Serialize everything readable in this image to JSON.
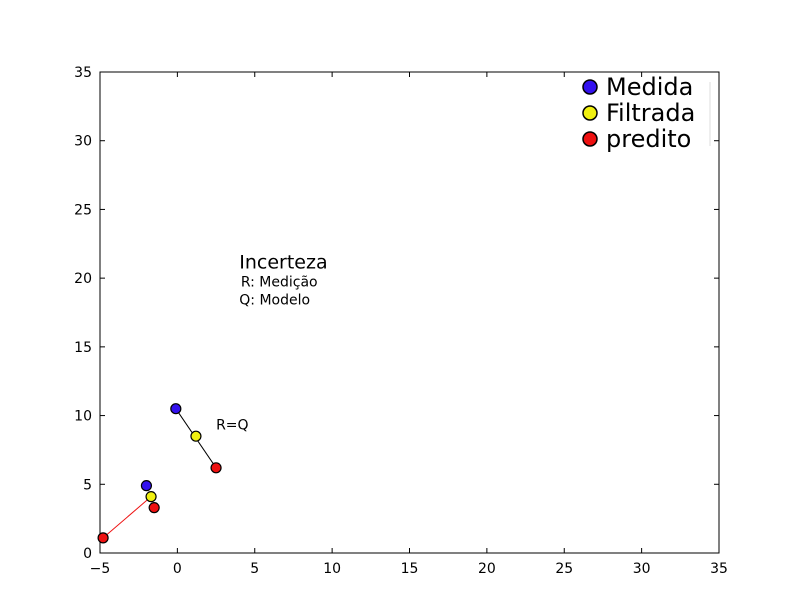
{
  "chart_data": {
    "type": "scatter",
    "xlim": [
      -5,
      35
    ],
    "ylim": [
      0,
      35
    ],
    "x_ticks": [
      -5,
      0,
      5,
      10,
      15,
      20,
      25,
      30,
      35
    ],
    "y_ticks": [
      0,
      5,
      10,
      15,
      20,
      25,
      30,
      35
    ],
    "x_tick_labels": [
      "−5",
      "0",
      "5",
      "10",
      "15",
      "20",
      "25",
      "30",
      "35"
    ],
    "y_tick_labels": [
      "0",
      "5",
      "10",
      "15",
      "20",
      "25",
      "30",
      "35"
    ],
    "grid": false,
    "legend_position": "top-right",
    "series": [
      {
        "name": "Medida",
        "color": "#3311ee",
        "points": [
          [
            -0.1,
            10.5
          ],
          [
            -2.0,
            4.9
          ]
        ]
      },
      {
        "name": "Filtrada",
        "color": "#f0f010",
        "points": [
          [
            1.2,
            8.5
          ],
          [
            -1.7,
            4.1
          ]
        ]
      },
      {
        "name": "predito",
        "color": "#ee1111",
        "points": [
          [
            2.5,
            6.2
          ],
          [
            -1.5,
            3.3
          ],
          [
            -4.8,
            1.1
          ]
        ]
      }
    ],
    "connectors": [
      {
        "from": [
          -0.1,
          10.5
        ],
        "to": [
          2.5,
          6.2
        ],
        "color": "#000000"
      },
      {
        "from": [
          -1.7,
          4.1
        ],
        "to": [
          -4.8,
          1.1
        ],
        "color": "#ee1111"
      }
    ],
    "annotations": [
      {
        "text": "Incerteza",
        "x": 4.0,
        "y": 20.7,
        "size": "large"
      },
      {
        "text": "R: Medição",
        "x": 4.1,
        "y": 19.4,
        "size": "small"
      },
      {
        "text": "Q: Modelo",
        "x": 4.0,
        "y": 18.1,
        "size": "small"
      },
      {
        "text": "R=Q",
        "x": 2.5,
        "y": 9.0,
        "size": "small"
      }
    ]
  }
}
